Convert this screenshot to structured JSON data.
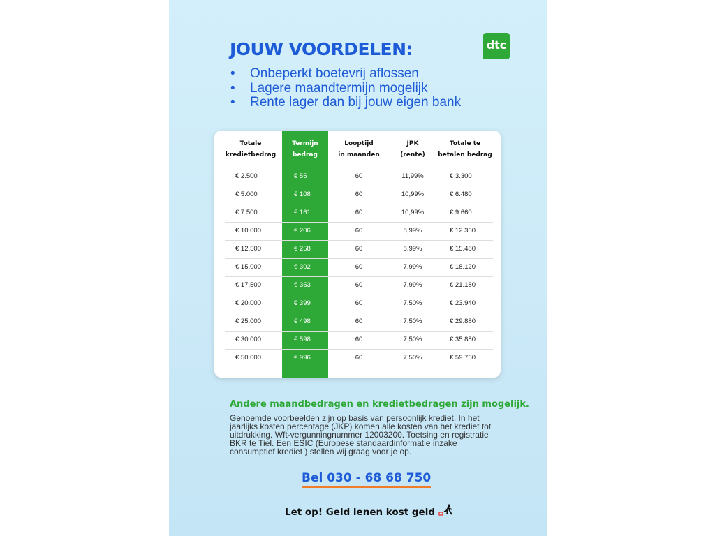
{
  "header": {
    "title": "JOUW VOORDELEN:",
    "logo": "dtc"
  },
  "bullets": [
    "Onbeperkt boetevrij aflossen",
    "Lagere maandtermijn mogelijk",
    "Rente lager dan bij jouw eigen bank"
  ],
  "table": {
    "headers": [
      [
        "Totale",
        "kredietbedrag"
      ],
      [
        "Termijn",
        "bedrag"
      ],
      [
        "Looptijd",
        "in maanden"
      ],
      [
        "JPK",
        "(rente)"
      ],
      [
        "Totale te",
        "betalen bedrag"
      ]
    ],
    "rows": [
      [
        "€ 2.500",
        "€ 55",
        "60",
        "11,99%",
        "€ 3.300"
      ],
      [
        "€ 5.000",
        "€ 108",
        "60",
        "10,99%",
        "€ 6.480"
      ],
      [
        "€ 7.500",
        "€ 161",
        "60",
        "10,99%",
        "€ 9.660"
      ],
      [
        "€ 10.000",
        "€ 206",
        "60",
        "8,99%",
        "€ 12.360"
      ],
      [
        "€ 12.500",
        "€ 258",
        "60",
        "8,99%",
        "€ 15.480"
      ],
      [
        "€ 15.000",
        "€ 302",
        "60",
        "7,99%",
        "€ 18.120"
      ],
      [
        "€ 17.500",
        "€ 353",
        "60",
        "7,99%",
        "€ 21.180"
      ],
      [
        "€ 20.000",
        "€ 399",
        "60",
        "7,50%",
        "€ 23.940"
      ],
      [
        "€ 25.000",
        "€ 498",
        "60",
        "7,50%",
        "€ 29.880"
      ],
      [
        "€ 30.000",
        "€ 598",
        "60",
        "7,50%",
        "€ 35.880"
      ],
      [
        "€ 50.000",
        "€ 996",
        "60",
        "7,50%",
        "€ 59.760"
      ]
    ]
  },
  "note": {
    "heading": "Andere maandbedragen en kredietbedragen zijn mogelijk.",
    "lines": [
      "Genoemde voorbeelden zijn op basis van persoonlijk krediet. In het",
      "jaarlijks kosten percentage (JKP) komen alle kosten van het krediet tot",
      "uitdrukking. Wft-vergunningnummer 12003200. Toetsing en registratie",
      "BKR te Tiel. Een ESIC (Europese standaardinformatie inzake",
      "consumptief krediet ) stellen wij graag voor je op."
    ]
  },
  "phone": "Bel 030 - 68 68 750",
  "warning": "Let op! Geld lenen kost geld"
}
